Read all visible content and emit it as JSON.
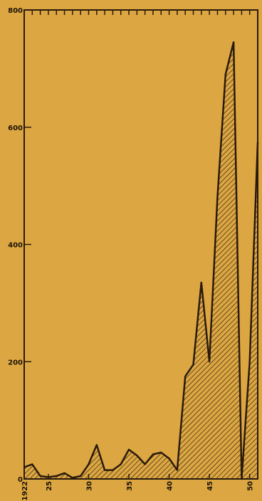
{
  "chart_data": {
    "type": "area",
    "title": "",
    "xlabel": "",
    "ylabel": "",
    "xlim": [
      1922,
      1951
    ],
    "ylim": [
      0,
      800
    ],
    "grid": false,
    "hatched_fill": true,
    "colors": {
      "background": "#dca742",
      "ink": "#2a1a0c"
    },
    "y_ticks": [
      0,
      200,
      400,
      600,
      800
    ],
    "y_tick_labels": [
      "0",
      "200",
      "400",
      "600",
      "800"
    ],
    "x_ticks": [
      1922,
      1925,
      1930,
      1935,
      1940,
      1945,
      1950
    ],
    "x_tick_labels": [
      "1922",
      "25",
      "30",
      "35",
      "40",
      "45",
      "50"
    ],
    "x": [
      1922,
      1923,
      1924,
      1925,
      1926,
      1927,
      1928,
      1929,
      1930,
      1931,
      1932,
      1933,
      1934,
      1935,
      1936,
      1937,
      1938,
      1939,
      1940,
      1941,
      1942,
      1943,
      1944,
      1945,
      1946,
      1947,
      1948,
      1949,
      1950,
      1951
    ],
    "values": [
      20,
      25,
      5,
      3,
      5,
      10,
      2,
      5,
      25,
      58,
      15,
      15,
      25,
      50,
      40,
      25,
      42,
      45,
      35,
      15,
      175,
      195,
      335,
      200,
      480,
      690,
      745,
      0,
      200,
      575
    ]
  }
}
